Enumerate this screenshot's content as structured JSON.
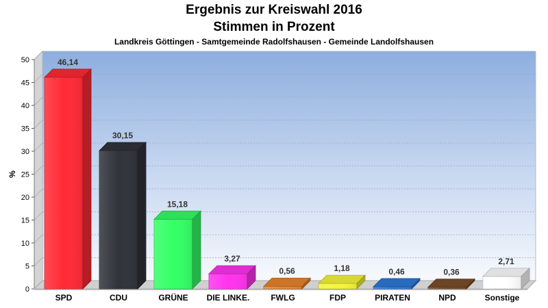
{
  "chart_data": {
    "type": "bar",
    "title": "Ergebnis zur Kreiswahl 2016",
    "title_line2": "Stimmen in Prozent",
    "subtitle": "Landkreis Göttingen - Samtgemeinde Radolfshausen - Gemeinde Landolfshausen",
    "ylabel": "%",
    "ylim": [
      0,
      50
    ],
    "yticks": [
      "0",
      "5",
      "10",
      "15",
      "20",
      "25",
      "30",
      "35",
      "40",
      "45",
      "50"
    ],
    "grid": true,
    "categories": [
      "SPD",
      "CDU",
      "GRÜNE",
      "DIE LINKE.",
      "FWLG",
      "FDP",
      "PIRATEN",
      "NPD",
      "Sonstige"
    ],
    "values": [
      46.14,
      30.15,
      15.18,
      3.27,
      0.56,
      1.18,
      0.46,
      0.36,
      2.71
    ],
    "value_labels": [
      "46,14",
      "30,15",
      "15,18",
      "3,27",
      "0,56",
      "1,18",
      "0,46",
      "0,36",
      "2,71"
    ],
    "colors": [
      "#ff2a35",
      "#30333a",
      "#33ff66",
      "#ff33ee",
      "#e8852e",
      "#f5f53a",
      "#2e79d8",
      "#7a4e2a",
      "#ffffff"
    ]
  }
}
